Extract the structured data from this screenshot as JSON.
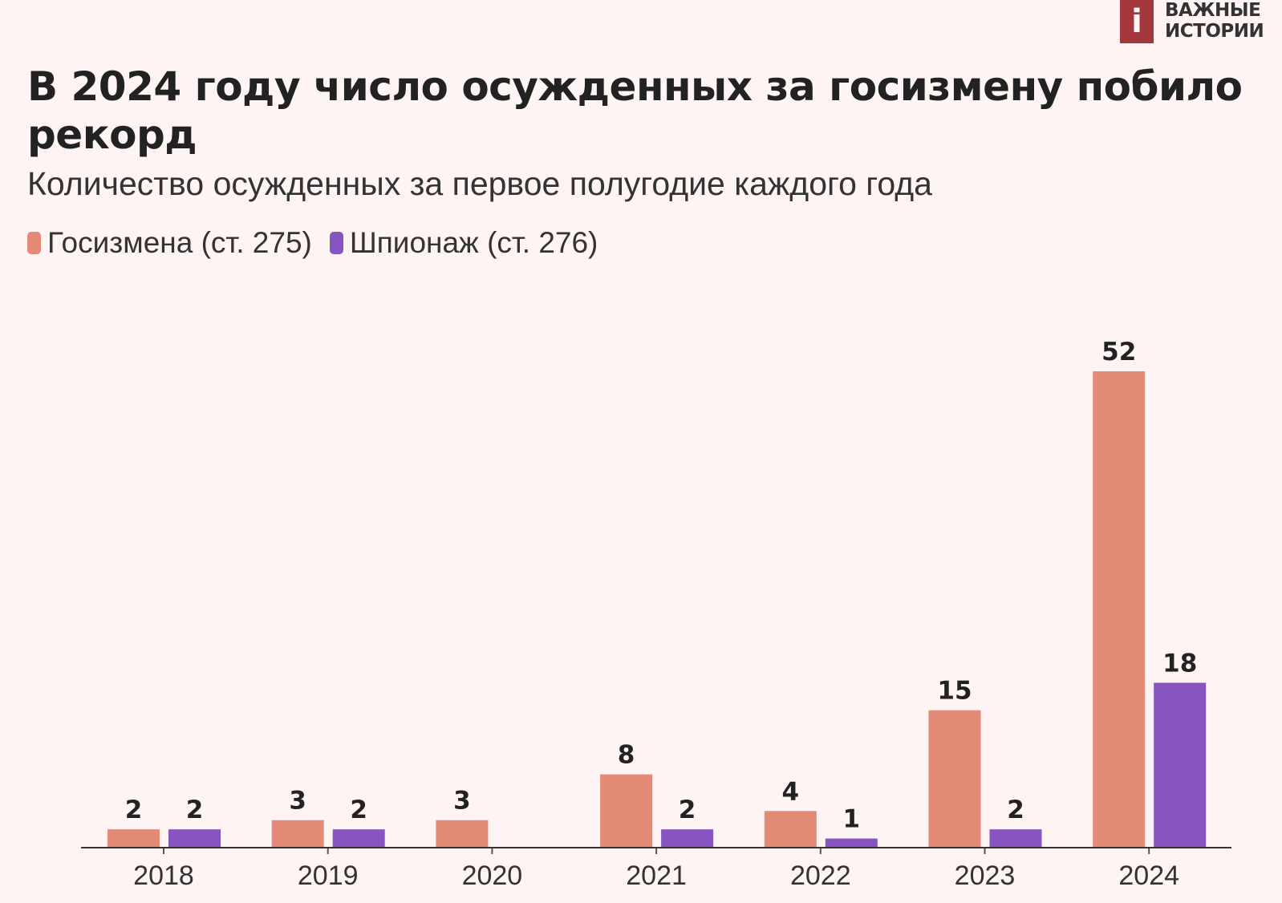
{
  "logo": {
    "mark": "i",
    "line1": "ВАЖНЫЕ",
    "line2": "ИСТОРИИ",
    "color": "#a3373c"
  },
  "chart_data": {
    "type": "bar",
    "title": "В 2024 году число осужденных за госизмену побило рекорд",
    "subtitle": "Количество осужденных за первое полугодие каждого года",
    "categories": [
      "2018",
      "2019",
      "2020",
      "2021",
      "2022",
      "2023",
      "2024"
    ],
    "series": [
      {
        "name": "Госизмена (ст. 275)",
        "color": "#e38a77",
        "values": [
          2,
          3,
          3,
          8,
          4,
          15,
          52
        ]
      },
      {
        "name": "Шпионаж (ст. 276)",
        "color": "#8655bf",
        "values": [
          2,
          2,
          null,
          2,
          1,
          2,
          18
        ]
      }
    ],
    "ylim": [
      0,
      52
    ],
    "grid": false,
    "legend": "top-left",
    "data_labels": true
  }
}
